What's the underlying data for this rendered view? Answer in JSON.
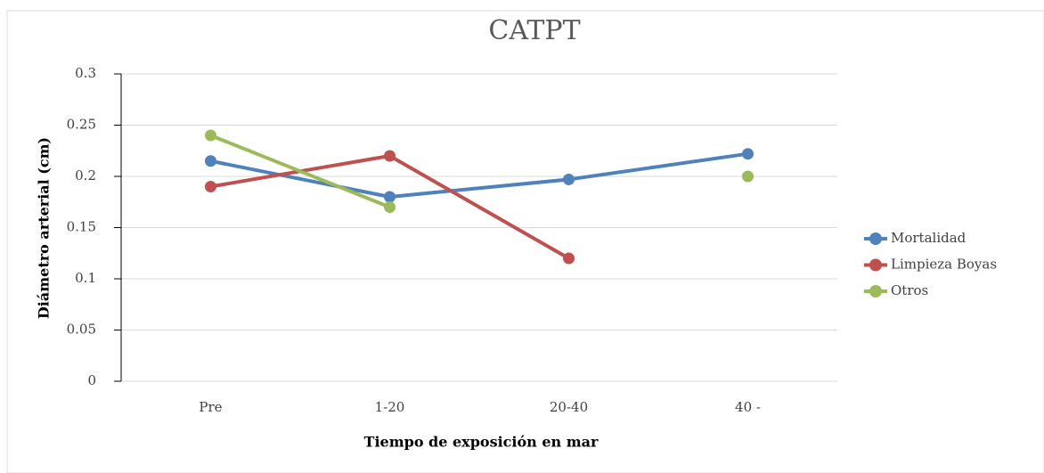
{
  "chart_data": {
    "type": "line",
    "title": "CATPT",
    "x_label": "Tiempo de exposición en  mar",
    "y_label": "Diámetro arterial (cm)",
    "categories": [
      "Pre",
      "1-20",
      "20-40",
      "40 -"
    ],
    "series": [
      {
        "name": "Mortalidad",
        "color": "#4f81bd",
        "values": [
          0.215,
          0.18,
          0.197,
          0.222
        ]
      },
      {
        "name": "Limpieza Boyas",
        "color": "#c0504d",
        "values": [
          0.19,
          0.22,
          0.12,
          null
        ]
      },
      {
        "name": "Otros",
        "color": "#9bbb59",
        "values": [
          0.24,
          0.17,
          null,
          0.2
        ]
      }
    ],
    "ylim": [
      0,
      0.3
    ],
    "yticks": [
      0,
      0.05,
      0.1,
      0.15,
      0.2,
      0.25,
      0.3
    ],
    "grid": true,
    "legend": "right"
  }
}
